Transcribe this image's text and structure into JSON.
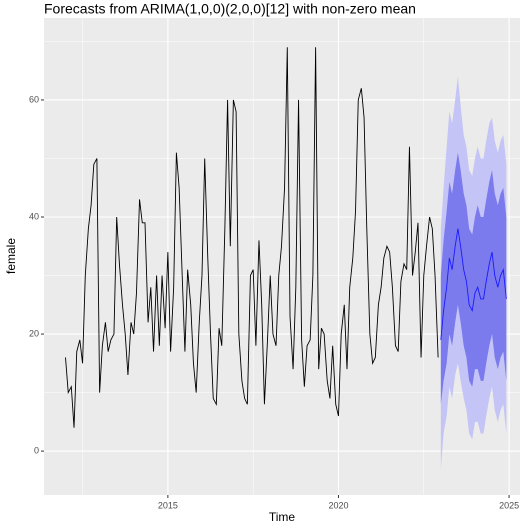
{
  "chart_data": {
    "type": "forecast",
    "title": "Forecasts from ARIMA(1,0,0)(2,0,0)[12] with non-zero mean",
    "x_label": "Time",
    "y_label": "female",
    "xlim": [
      2011.37,
      2025.32
    ],
    "xticks": [
      2015,
      2020,
      2025
    ],
    "ylim": [
      -7.5,
      74
    ],
    "yticks": [
      0,
      20,
      40,
      60
    ],
    "grid": true,
    "color": "#000000",
    "x": [
      2012.0,
      2012.08,
      2012.17,
      2012.25,
      2012.33,
      2012.42,
      2012.5,
      2012.58,
      2012.67,
      2012.75,
      2012.83,
      2012.92,
      2013.0,
      2013.08,
      2013.17,
      2013.25,
      2013.33,
      2013.42,
      2013.5,
      2013.58,
      2013.67,
      2013.75,
      2013.83,
      2013.92,
      2014.0,
      2014.08,
      2014.17,
      2014.25,
      2014.33,
      2014.42,
      2014.5,
      2014.58,
      2014.67,
      2014.75,
      2014.83,
      2014.92,
      2015.0,
      2015.08,
      2015.17,
      2015.25,
      2015.33,
      2015.42,
      2015.5,
      2015.58,
      2015.67,
      2015.75,
      2015.83,
      2015.92,
      2016.0,
      2016.08,
      2016.17,
      2016.25,
      2016.33,
      2016.42,
      2016.5,
      2016.58,
      2016.67,
      2016.75,
      2016.83,
      2016.92,
      2017.0,
      2017.08,
      2017.17,
      2017.25,
      2017.33,
      2017.42,
      2017.5,
      2017.58,
      2017.67,
      2017.75,
      2017.83,
      2017.92,
      2018.0,
      2018.08,
      2018.17,
      2018.25,
      2018.33,
      2018.42,
      2018.5,
      2018.58,
      2018.67,
      2018.75,
      2018.83,
      2018.92,
      2019.0,
      2019.08,
      2019.17,
      2019.25,
      2019.33,
      2019.42,
      2019.5,
      2019.58,
      2019.67,
      2019.75,
      2019.83,
      2019.92,
      2020.0,
      2020.08,
      2020.17,
      2020.25,
      2020.33,
      2020.42,
      2020.5,
      2020.58,
      2020.67,
      2020.75,
      2020.83,
      2020.92,
      2021.0,
      2021.08,
      2021.17,
      2021.25,
      2021.33,
      2021.42,
      2021.5,
      2021.58,
      2021.67,
      2021.75,
      2021.83,
      2021.92,
      2022.0,
      2022.08,
      2022.17,
      2022.25,
      2022.33,
      2022.42,
      2022.5,
      2022.58,
      2022.67,
      2022.75,
      2022.83,
      2022.92
    ],
    "values": [
      16,
      10,
      11,
      4,
      17,
      19,
      15,
      30,
      38,
      42,
      49,
      50,
      10,
      18,
      22,
      17,
      19,
      20,
      40,
      32,
      25,
      20,
      13,
      22,
      20,
      27,
      43,
      39,
      39,
      22,
      28,
      17,
      30,
      18,
      30,
      21,
      34,
      17,
      28,
      51,
      45,
      30,
      17,
      31,
      25,
      15,
      10,
      22,
      30,
      50,
      33,
      20,
      9,
      8,
      21,
      18,
      38,
      60,
      35,
      60,
      58,
      20,
      12,
      9,
      8,
      30,
      31,
      18,
      36,
      25,
      8,
      19,
      30,
      20,
      18,
      30,
      35,
      45,
      69,
      23,
      14,
      28,
      60,
      19,
      11,
      18,
      19,
      30,
      69,
      14,
      21,
      20,
      12,
      9,
      18,
      8,
      6,
      20,
      25,
      14,
      28,
      33,
      41,
      60,
      62,
      57,
      38,
      20,
      15,
      16,
      25,
      28,
      33,
      35,
      34,
      28,
      18,
      17,
      29,
      32,
      31,
      52,
      30,
      34,
      39,
      16,
      30,
      35,
      40,
      38,
      30,
      16
    ],
    "forecast": {
      "color": "#1a1aff",
      "color80": "#7b7bee",
      "color95": "#c4c4f6",
      "x": [
        2023.0,
        2023.08,
        2023.17,
        2023.25,
        2023.33,
        2023.42,
        2023.5,
        2023.58,
        2023.67,
        2023.75,
        2023.83,
        2023.92,
        2024.0,
        2024.08,
        2024.17,
        2024.25,
        2024.33,
        2024.42,
        2024.5,
        2024.58,
        2024.67,
        2024.75,
        2024.83,
        2024.92
      ],
      "mean": [
        19,
        24,
        28,
        33,
        31,
        35,
        38,
        35,
        31,
        29,
        25,
        24,
        27,
        28,
        26,
        26,
        29,
        32,
        34,
        30,
        28,
        30,
        31,
        26
      ],
      "lo80": [
        8,
        12,
        15,
        20,
        18,
        22,
        25,
        22,
        18,
        16,
        12,
        11,
        14,
        14,
        12,
        12,
        15,
        18,
        20,
        16,
        14,
        16,
        17,
        12
      ],
      "hi80": [
        30,
        36,
        41,
        46,
        44,
        48,
        51,
        48,
        44,
        42,
        38,
        37,
        40,
        42,
        40,
        40,
        43,
        46,
        48,
        44,
        42,
        44,
        45,
        40
      ],
      "lo95": [
        -3,
        3,
        6,
        11,
        9,
        13,
        15,
        12,
        9,
        7,
        3,
        2,
        5,
        5,
        3,
        3,
        6,
        9,
        11,
        7,
        5,
        7,
        8,
        3
      ],
      "hi95": [
        38,
        45,
        52,
        58,
        56,
        60,
        64,
        59,
        54,
        52,
        48,
        47,
        50,
        52,
        50,
        50,
        53,
        56,
        57,
        53,
        51,
        53,
        54,
        49
      ]
    }
  }
}
